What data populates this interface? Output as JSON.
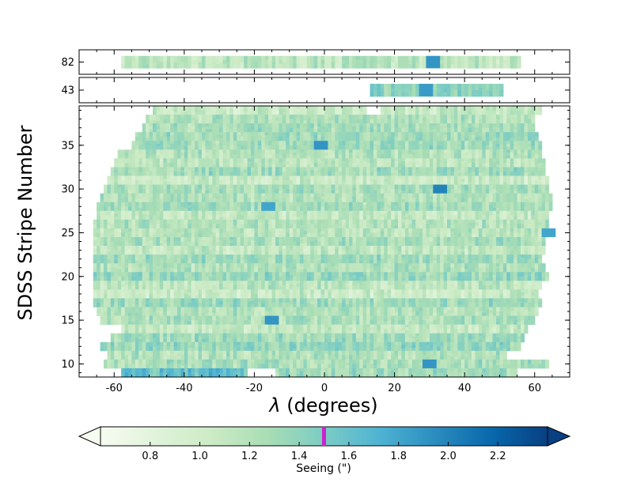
{
  "chart_data": {
    "type": "heatmap",
    "title": "",
    "xlabel": "λ (degrees)",
    "ylabel": "SDSS Stripe Number",
    "xlim": [
      -70,
      70
    ],
    "xticks": [
      -60,
      -40,
      -20,
      0,
      20,
      40,
      60
    ],
    "panels": [
      {
        "name": "top",
        "ylim": [
          81,
          83
        ],
        "yticks": [
          82
        ]
      },
      {
        "name": "middle",
        "ylim": [
          42,
          44
        ],
        "yticks": [
          43
        ]
      },
      {
        "name": "main",
        "ylim": [
          8.5,
          39.5
        ],
        "yticks": [
          10,
          15,
          20,
          25,
          30,
          35
        ]
      }
    ],
    "colorbar": {
      "label": "Seeing  (\")",
      "ticks": [
        0.8,
        1.0,
        1.2,
        1.4,
        1.6,
        1.8,
        2.0,
        2.2
      ],
      "range": [
        0.6,
        2.4
      ],
      "extend": "both",
      "marker_value": 1.5,
      "marker_color": "#cc22cc",
      "colors": [
        "#f7fcf0",
        "#e0f3db",
        "#ccebc5",
        "#a8ddb5",
        "#7bccc4",
        "#4eb3d3",
        "#2b8cbe",
        "#0868ac",
        "#084081"
      ]
    },
    "stripes": [
      {
        "stripe": 82,
        "runs": [
          {
            "lambda": [
              -58,
              56
            ],
            "seeing": 1.15
          }
        ]
      },
      {
        "stripe": 43,
        "runs": [
          {
            "lambda": [
              13,
              51
            ],
            "seeing": 1.4
          }
        ]
      },
      {
        "stripe": 39,
        "runs": [
          {
            "lambda": [
              -49,
              12
            ],
            "seeing": 1.05
          },
          {
            "lambda": [
              16,
              62
            ],
            "seeing": 1.1
          }
        ]
      },
      {
        "stripe": 38,
        "runs": [
          {
            "lambda": [
              -51,
              60
            ],
            "seeing": 1.2
          }
        ]
      },
      {
        "stripe": 37,
        "runs": [
          {
            "lambda": [
              -52,
              60
            ],
            "seeing": 1.25
          }
        ]
      },
      {
        "stripe": 36,
        "runs": [
          {
            "lambda": [
              -54,
              61
            ],
            "seeing": 1.3
          }
        ]
      },
      {
        "stripe": 35,
        "runs": [
          {
            "lambda": [
              -55,
              62
            ],
            "seeing": 1.3
          }
        ]
      },
      {
        "stripe": 34,
        "runs": [
          {
            "lambda": [
              -59,
              62
            ],
            "seeing": 1.2
          }
        ]
      },
      {
        "stripe": 33,
        "runs": [
          {
            "lambda": [
              -60,
              63
            ],
            "seeing": 1.15
          }
        ]
      },
      {
        "stripe": 32,
        "runs": [
          {
            "lambda": [
              -61,
              63
            ],
            "seeing": 1.3
          }
        ]
      },
      {
        "stripe": 31,
        "runs": [
          {
            "lambda": [
              -62,
              64
            ],
            "seeing": 1.05
          }
        ]
      },
      {
        "stripe": 30,
        "runs": [
          {
            "lambda": [
              -63,
              64
            ],
            "seeing": 1.25
          }
        ]
      },
      {
        "stripe": 29,
        "runs": [
          {
            "lambda": [
              -64,
              65
            ],
            "seeing": 1.2
          }
        ]
      },
      {
        "stripe": 28,
        "runs": [
          {
            "lambda": [
              -65,
              65
            ],
            "seeing": 1.3
          }
        ]
      },
      {
        "stripe": 27,
        "runs": [
          {
            "lambda": [
              -65,
              64
            ],
            "seeing": 1.1
          }
        ]
      },
      {
        "stripe": 26,
        "runs": [
          {
            "lambda": [
              -66,
              64
            ],
            "seeing": 1.2
          }
        ]
      },
      {
        "stripe": 25,
        "runs": [
          {
            "lambda": [
              -66,
              64
            ],
            "seeing": 1.15
          }
        ]
      },
      {
        "stripe": 24,
        "runs": [
          {
            "lambda": [
              -66,
              63
            ],
            "seeing": 1.25
          }
        ]
      },
      {
        "stripe": 23,
        "runs": [
          {
            "lambda": [
              -66,
              63
            ],
            "seeing": 1.1
          }
        ]
      },
      {
        "stripe": 22,
        "runs": [
          {
            "lambda": [
              -66,
              62
            ],
            "seeing": 1.3
          }
        ]
      },
      {
        "stripe": 21,
        "runs": [
          {
            "lambda": [
              -66,
              63
            ],
            "seeing": 1.2
          }
        ]
      },
      {
        "stripe": 20,
        "runs": [
          {
            "lambda": [
              -66,
              64
            ],
            "seeing": 1.35
          }
        ]
      },
      {
        "stripe": 19,
        "runs": [
          {
            "lambda": [
              -66,
              62
            ],
            "seeing": 1.15
          }
        ]
      },
      {
        "stripe": 18,
        "runs": [
          {
            "lambda": [
              -66,
              61
            ],
            "seeing": 1.05
          }
        ]
      },
      {
        "stripe": 17,
        "runs": [
          {
            "lambda": [
              -66,
              62
            ],
            "seeing": 1.3
          }
        ]
      },
      {
        "stripe": 16,
        "runs": [
          {
            "lambda": [
              -65,
              61
            ],
            "seeing": 1.2
          }
        ]
      },
      {
        "stripe": 15,
        "runs": [
          {
            "lambda": [
              -64,
              60
            ],
            "seeing": 1.25
          }
        ]
      },
      {
        "stripe": 14,
        "runs": [
          {
            "lambda": [
              -58,
              58
            ],
            "seeing": 1.1
          }
        ]
      },
      {
        "stripe": 13,
        "runs": [
          {
            "lambda": [
              -61,
              57
            ],
            "seeing": 1.3
          }
        ]
      },
      {
        "stripe": 12,
        "runs": [
          {
            "lambda": [
              -64,
              56
            ],
            "seeing": 1.35
          }
        ]
      },
      {
        "stripe": 11,
        "runs": [
          {
            "lambda": [
              -62,
              52
            ],
            "seeing": 1.2
          }
        ]
      },
      {
        "stripe": 10,
        "runs": [
          {
            "lambda": [
              -63,
              64
            ],
            "seeing": 1.25
          }
        ]
      },
      {
        "stripe": 9,
        "runs": [
          {
            "lambda": [
              -58,
              -22
            ],
            "seeing": 1.6
          },
          {
            "lambda": [
              -14,
              55
            ],
            "seeing": 1.3
          }
        ]
      }
    ],
    "hotspots": [
      {
        "stripe": 82,
        "lambda": 31,
        "seeing": 1.9
      },
      {
        "stripe": 43,
        "lambda": 29,
        "seeing": 1.85
      },
      {
        "stripe": 35,
        "lambda": -1,
        "seeing": 1.9
      },
      {
        "stripe": 30,
        "lambda": 33,
        "seeing": 2.0
      },
      {
        "stripe": 28,
        "lambda": -16,
        "seeing": 1.8
      },
      {
        "stripe": 25,
        "lambda": 64,
        "seeing": 1.8
      },
      {
        "stripe": 15,
        "lambda": -15,
        "seeing": 1.9
      },
      {
        "stripe": 10,
        "lambda": 30,
        "seeing": 1.9
      }
    ]
  },
  "labels": {
    "xlabel_symbol": "λ",
    "xlabel_unit": " (degrees)",
    "ylabel": "SDSS Stripe Number",
    "colorbar_label": "Seeing  (\")"
  }
}
